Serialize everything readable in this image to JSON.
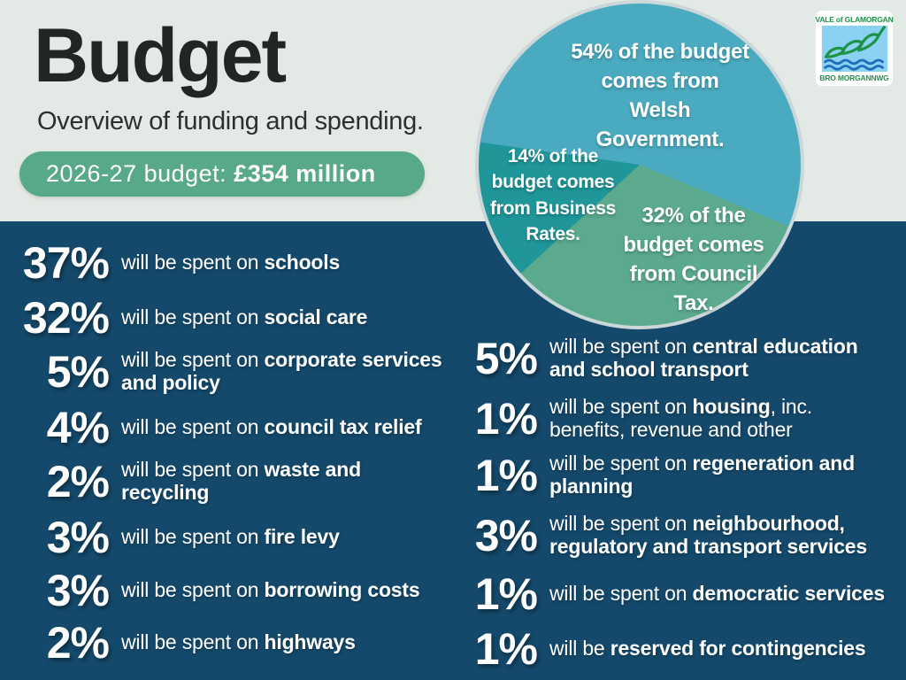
{
  "header": {
    "title": "Budget",
    "subtitle": "Overview of funding and spending.",
    "budget_pill": {
      "label": "2026-27 budget:",
      "value": "£354 million",
      "color": "#58a989"
    }
  },
  "logo": {
    "line1": "VALE of GLAMORGAN",
    "line2": "BRO MORGANNWG"
  },
  "funding_pie": {
    "border_color": "#ccd7da",
    "segments": [
      {
        "label": "54% of the budget comes from Welsh Government.",
        "pct": 54,
        "color": "#4aabc0"
      },
      {
        "label": "32% of the budget comes from Council Tax.",
        "pct": 32,
        "color": "#5baa8e"
      },
      {
        "label": "14% of the budget comes from Business Rates.",
        "pct": 14,
        "color": "#1f9699"
      }
    ]
  },
  "spending": {
    "left": [
      {
        "pct": "37%",
        "pre": "will be spent on ",
        "bold": "schools",
        "post": ""
      },
      {
        "pct": "32%",
        "pre": "will be spent on ",
        "bold": "social care",
        "post": ""
      },
      {
        "pct": "5%",
        "pre": "will be spent on ",
        "bold": "corporate services and policy",
        "post": ""
      },
      {
        "pct": "4%",
        "pre": "will be spent on ",
        "bold": "council tax relief",
        "post": ""
      },
      {
        "pct": "2%",
        "pre": "will be spent on ",
        "bold": "waste and recycling",
        "post": ""
      },
      {
        "pct": "3%",
        "pre": "will be spent on ",
        "bold": "fire levy",
        "post": ""
      },
      {
        "pct": "3%",
        "pre": "will be spent on ",
        "bold": "borrowing costs",
        "post": ""
      },
      {
        "pct": "2%",
        "pre": "will be spent on ",
        "bold": "highways",
        "post": ""
      }
    ],
    "right": [
      {
        "pct": "5%",
        "pre": "will be spent on ",
        "bold": "central education and school transport",
        "post": ""
      },
      {
        "pct": "1%",
        "pre": "will be spent on ",
        "bold": "housing",
        "post": ", inc. benefits, revenue and other"
      },
      {
        "pct": "1%",
        "pre": "will be spent on ",
        "bold": "regeneration and planning",
        "post": ""
      },
      {
        "pct": "3%",
        "pre": "will be spent on ",
        "bold": "neighbourhood, regulatory and transport services",
        "post": ""
      },
      {
        "pct": "1%",
        "pre": "will be spent on ",
        "bold": "democratic services",
        "post": ""
      },
      {
        "pct": "1%",
        "pre": "will be ",
        "bold": "reserved for contingencies",
        "post": ""
      }
    ]
  },
  "colors": {
    "background_light": "#e3eae5",
    "background_navy": "#14496b"
  },
  "chart_data": [
    {
      "type": "pie",
      "title": "Where the 2026-27 budget comes from",
      "labels": [
        "Welsh Government",
        "Council Tax",
        "Business Rates"
      ],
      "values": [
        54,
        32,
        14
      ],
      "colors": [
        "#4aabc0",
        "#5baa8e",
        "#1f9699"
      ],
      "unit": "percent",
      "annotations": [
        "54% of the budget comes from Welsh Government.",
        "32% of the budget comes from Council Tax.",
        "14% of the budget comes from Business Rates."
      ]
    },
    {
      "type": "table",
      "title": "2026-27 spending breakdown (£354 million total)",
      "categories": [
        "schools",
        "social care",
        "corporate services and policy",
        "council tax relief",
        "waste and recycling",
        "fire levy",
        "borrowing costs",
        "highways",
        "central education and school transport",
        "housing, inc. benefits, revenue and other",
        "regeneration and planning",
        "neighbourhood, regulatory and transport services",
        "democratic services",
        "reserved for contingencies"
      ],
      "values": [
        37,
        32,
        5,
        4,
        2,
        3,
        3,
        2,
        5,
        1,
        1,
        3,
        1,
        1
      ],
      "unit": "percent"
    }
  ]
}
